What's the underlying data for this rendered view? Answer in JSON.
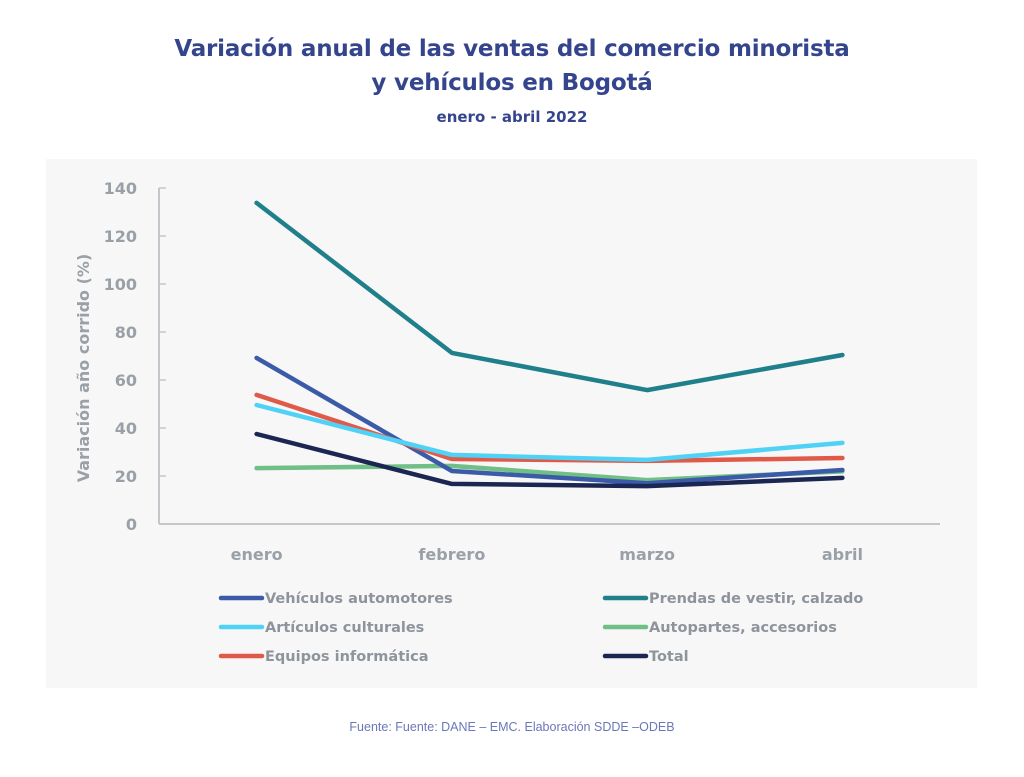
{
  "chart_data": {
    "type": "line",
    "title": "Variación anual de las ventas del comercio minorista",
    "title_line2": "y vehículos en Bogotá",
    "subtitle": "enero - abril 2022",
    "xlabel": "",
    "ylabel": "Variación año corrido (%)",
    "categories": [
      "enero",
      "febrero",
      "marzo",
      "abril"
    ],
    "ylim": [
      0,
      140
    ],
    "yticks": [
      0,
      20,
      40,
      60,
      80,
      100,
      120,
      140
    ],
    "grid": false,
    "legend_position": "bottom",
    "series": [
      {
        "name": "Vehículos automotores",
        "color": "#3b5ba9",
        "values": [
          69.2,
          22.1,
          17.0,
          22.5
        ]
      },
      {
        "name": "Prendas de vestir, calzado",
        "color": "#1f7f8a",
        "values": [
          133.8,
          71.3,
          55.8,
          70.4
        ]
      },
      {
        "name": "Artículos culturales",
        "color": "#4fd2f5",
        "values": [
          49.6,
          28.8,
          26.7,
          33.8
        ]
      },
      {
        "name": "Autopartes, accesorios",
        "color": "#6fbf86",
        "values": [
          23.3,
          24.2,
          18.3,
          21.9
        ]
      },
      {
        "name": "Equipos informática",
        "color": "#e05a4a",
        "values": [
          53.8,
          27.1,
          26.3,
          27.5
        ]
      },
      {
        "name": "Total",
        "color": "#1c2652",
        "values": [
          37.5,
          16.7,
          15.8,
          19.2
        ]
      }
    ],
    "draw_order": [
      3,
      0,
      4,
      2,
      5,
      1
    ]
  },
  "source": "Fuente: Fuente: DANE – EMC. Elaboración SDDE –ODEB"
}
